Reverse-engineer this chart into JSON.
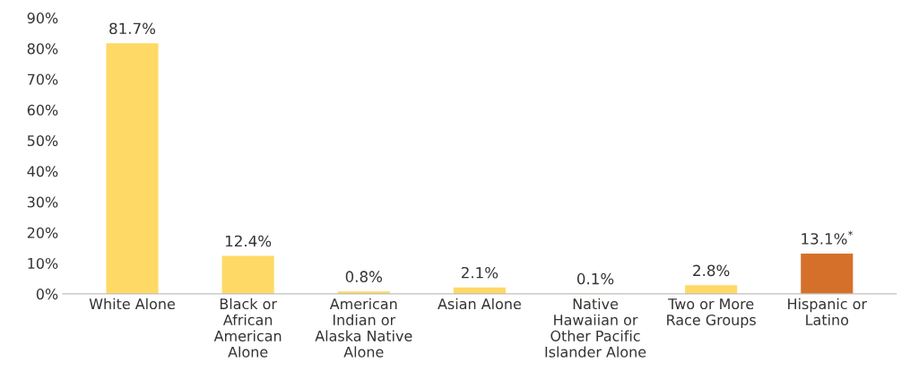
{
  "chart_data": {
    "type": "bar",
    "categories": [
      "White Alone",
      "Black or\nAfrican\nAmerican\nAlone",
      "American\nIndian or\nAlaska Native\nAlone",
      "Asian Alone",
      "Native\nHawaiian or\nOther Pacific\nIslander Alone",
      "Two or More\nRace Groups",
      "Hispanic or\nLatino"
    ],
    "values": [
      81.7,
      12.4,
      0.8,
      2.1,
      0.1,
      2.8,
      13.1
    ],
    "colors": [
      "#ffd966",
      "#ffd966",
      "#ffd966",
      "#ffd966",
      "#ffd966",
      "#ffd966",
      "#d5702a"
    ],
    "value_labels": [
      "81.7%",
      "12.4%",
      "0.8%",
      "2.1%",
      "0.1%",
      "2.8%",
      "13.1%$^{*}$"
    ],
    "ylim": [
      0,
      90
    ],
    "yticks": [
      {
        "value": 0,
        "label": "0%"
      },
      {
        "value": 10,
        "label": "10%"
      },
      {
        "value": 20,
        "label": "20%"
      },
      {
        "value": 30,
        "label": "30%"
      },
      {
        "value": 40,
        "label": "40%"
      },
      {
        "value": 50,
        "label": "50%"
      },
      {
        "value": 60,
        "label": "60%"
      },
      {
        "value": 70,
        "label": "70%"
      },
      {
        "value": 80,
        "label": "80%"
      },
      {
        "value": 90,
        "label": "90%"
      }
    ],
    "grid": false,
    "legend": false
  }
}
